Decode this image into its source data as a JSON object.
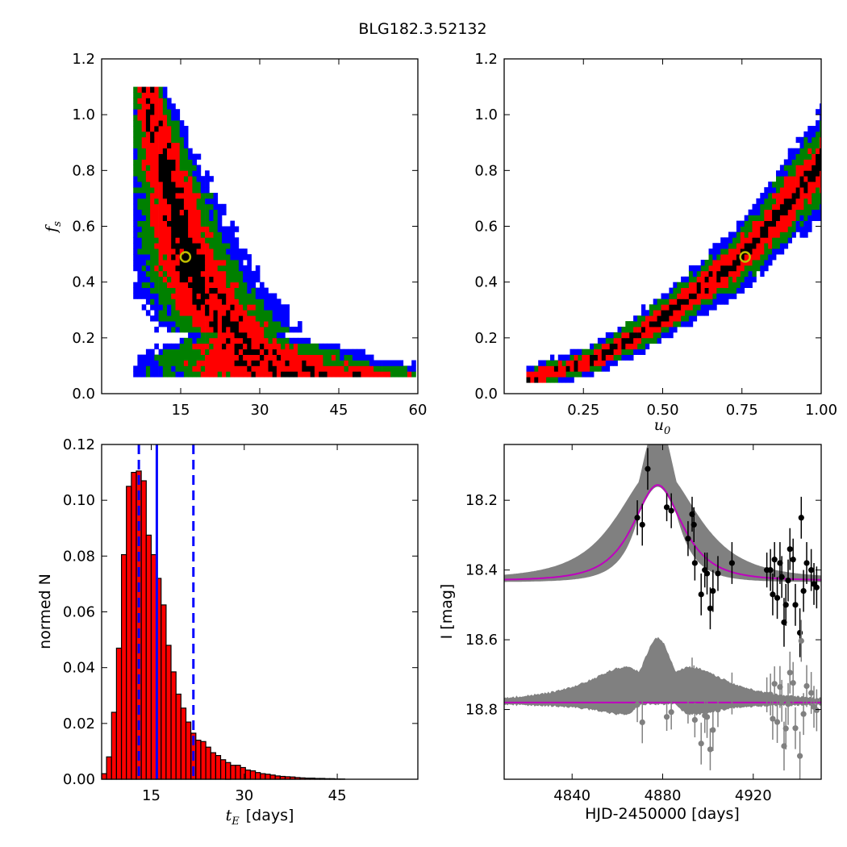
{
  "figure": {
    "title": "BLG182.3.52132"
  },
  "colors": {
    "sigma1": "#000000",
    "sigma2": "#ff0000",
    "sigma3": "#008000",
    "sigma4": "#0000ff",
    "best_fit_marker": "#bfbf00",
    "histogram_bar": "#ff0000",
    "median_line": "#0000ff",
    "model_curve": "#bf00bf",
    "model_band": "#808080",
    "residual_points": "#808080"
  },
  "chart_data": [
    {
      "id": "fs-vs-tE",
      "type": "heatmap",
      "title": "",
      "xlabel": "",
      "ylabel": "f_s",
      "ylabel_main": "f",
      "ylabel_sub": "s",
      "xlim": [
        0,
        60
      ],
      "ylim": [
        0.0,
        1.2
      ],
      "xticks": [
        15,
        30,
        45,
        60
      ],
      "xticklabels": [
        "15",
        "30",
        "45",
        "60"
      ],
      "yticks": [
        0.0,
        0.2,
        0.4,
        0.6,
        0.8,
        1.0,
        1.2
      ],
      "yticklabels": [
        "0.0",
        "0.2",
        "0.4",
        "0.6",
        "0.8",
        "1.0",
        "1.2"
      ],
      "grid": false,
      "levels": [
        "1-sigma",
        "2-sigma",
        "3-sigma",
        "4-sigma"
      ],
      "ridge": [
        [
          8,
          1.1
        ],
        [
          10,
          0.92
        ],
        [
          12,
          0.78
        ],
        [
          13,
          0.7
        ],
        [
          14,
          0.62
        ],
        [
          15,
          0.55
        ],
        [
          16,
          0.48
        ],
        [
          17,
          0.42
        ],
        [
          18,
          0.38
        ],
        [
          20,
          0.32
        ],
        [
          22,
          0.27
        ],
        [
          25,
          0.2
        ],
        [
          28,
          0.14
        ],
        [
          32,
          0.09
        ],
        [
          38,
          0.06
        ],
        [
          45,
          0.05
        ],
        [
          55,
          0.045
        ]
      ],
      "best_fit": {
        "x": 15.9,
        "y": 0.49
      }
    },
    {
      "id": "fs-vs-u0",
      "type": "heatmap",
      "title": "",
      "xlabel": "u_0",
      "xlabel_main": "u",
      "xlabel_sub": "0",
      "ylabel": "",
      "xlim": [
        0.0,
        1.0
      ],
      "ylim": [
        0.0,
        1.2
      ],
      "xticks": [
        0.25,
        0.5,
        0.75,
        1.0
      ],
      "xticklabels": [
        "0.25",
        "0.50",
        "0.75",
        "1.00"
      ],
      "yticks": [
        0.0,
        0.2,
        0.4,
        0.6,
        0.8,
        1.0,
        1.2
      ],
      "yticklabels": [
        "0.0",
        "0.2",
        "0.4",
        "0.6",
        "0.8",
        "1.0",
        "1.2"
      ],
      "grid": false,
      "levels": [
        "1-sigma",
        "2-sigma",
        "3-sigma",
        "4-sigma"
      ],
      "ridge": [
        [
          0.08,
          0.045
        ],
        [
          0.15,
          0.07
        ],
        [
          0.25,
          0.1
        ],
        [
          0.35,
          0.16
        ],
        [
          0.45,
          0.23
        ],
        [
          0.55,
          0.31
        ],
        [
          0.65,
          0.4
        ],
        [
          0.75,
          0.49
        ],
        [
          0.85,
          0.62
        ],
        [
          0.92,
          0.72
        ],
        [
          1.0,
          0.82
        ]
      ],
      "best_fit": {
        "x": 0.76,
        "y": 0.49
      }
    },
    {
      "id": "tE-histogram",
      "type": "bar",
      "title": "",
      "xlabel": "[days]",
      "xlabel_main": "t",
      "xlabel_sub": "E",
      "ylabel": "normed N",
      "xlim": [
        7,
        58
      ],
      "ylim": [
        0.0,
        0.12
      ],
      "xticks": [
        15,
        30,
        45
      ],
      "xticklabels": [
        "15",
        "30",
        "45"
      ],
      "yticks": [
        0.0,
        0.02,
        0.04,
        0.06,
        0.08,
        0.1,
        0.12
      ],
      "yticklabels": [
        "0.00",
        "0.02",
        "0.04",
        "0.06",
        "0.08",
        "0.10",
        "0.12"
      ],
      "grid": false,
      "bin_start": 7.0,
      "bin_width": 0.8,
      "values": [
        0.002,
        0.008,
        0.024,
        0.047,
        0.0805,
        0.105,
        0.11,
        0.1105,
        0.107,
        0.0875,
        0.0805,
        0.072,
        0.0625,
        0.048,
        0.0385,
        0.0305,
        0.0255,
        0.0205,
        0.0165,
        0.014,
        0.0135,
        0.0115,
        0.0095,
        0.0085,
        0.007,
        0.006,
        0.005,
        0.005,
        0.0042,
        0.0033,
        0.003,
        0.0024,
        0.002,
        0.0018,
        0.0015,
        0.0012,
        0.001,
        0.0009,
        0.0008,
        0.0006,
        0.0005,
        0.0004,
        0.0004,
        0.0003,
        0.0003,
        0.0002,
        0.0002,
        0.0001,
        0.0001
      ],
      "median": 15.9,
      "interval": [
        13.0,
        21.8
      ]
    },
    {
      "id": "light-curve",
      "type": "scatter",
      "title": "",
      "xlabel": "HJD-2450000 [days]",
      "ylabel": "I [mag]",
      "xlim": [
        4810,
        4950
      ],
      "ylim": [
        19.0,
        18.04
      ],
      "y_inverted": true,
      "xticks": [
        4840,
        4880,
        4920
      ],
      "xticklabels": [
        "4840",
        "4880",
        "4920"
      ],
      "yticks": [
        18.2,
        18.4,
        18.6,
        18.8
      ],
      "yticklabels": [
        "18.2",
        "18.4",
        "18.6",
        "18.8"
      ],
      "grid": false,
      "model": {
        "t0": 4877.8,
        "tE": 15.9,
        "u0": 0.76,
        "fs": 0.49,
        "baseline": 18.43,
        "residual_offset": 18.78
      },
      "points": [
        [
          4868.8,
          18.25,
          0.05
        ],
        [
          4871.0,
          18.27,
          0.06
        ],
        [
          4873.4,
          18.11,
          0.06
        ],
        [
          4881.8,
          18.22,
          0.04
        ],
        [
          4883.8,
          18.23,
          0.05
        ],
        [
          4891.2,
          18.31,
          0.05
        ],
        [
          4893.0,
          18.24,
          0.05
        ],
        [
          4893.8,
          18.27,
          0.05
        ],
        [
          4894.2,
          18.38,
          0.05
        ],
        [
          4897.0,
          18.47,
          0.06
        ],
        [
          4898.6,
          18.4,
          0.05
        ],
        [
          4899.6,
          18.41,
          0.06
        ],
        [
          4901.0,
          18.51,
          0.06
        ],
        [
          4902.2,
          18.46,
          0.06
        ],
        [
          4904.4,
          18.41,
          0.05
        ],
        [
          4910.6,
          18.38,
          0.06
        ],
        [
          4926.0,
          18.4,
          0.05
        ],
        [
          4927.6,
          18.4,
          0.06
        ],
        [
          4928.6,
          18.47,
          0.06
        ],
        [
          4929.4,
          18.37,
          0.05
        ],
        [
          4930.6,
          18.48,
          0.06
        ],
        [
          4931.8,
          18.38,
          0.06
        ],
        [
          4932.6,
          18.42,
          0.06
        ],
        [
          4933.6,
          18.55,
          0.07
        ],
        [
          4934.4,
          18.5,
          0.06
        ],
        [
          4935.4,
          18.43,
          0.06
        ],
        [
          4936.2,
          18.34,
          0.06
        ],
        [
          4937.6,
          18.37,
          0.06
        ],
        [
          4938.6,
          18.5,
          0.06
        ],
        [
          4940.6,
          18.58,
          0.07
        ],
        [
          4941.2,
          18.25,
          0.06
        ],
        [
          4942.2,
          18.46,
          0.06
        ],
        [
          4943.6,
          18.38,
          0.06
        ],
        [
          4945.6,
          18.4,
          0.06
        ],
        [
          4946.8,
          18.44,
          0.06
        ],
        [
          4948.0,
          18.45,
          0.06
        ]
      ]
    }
  ]
}
